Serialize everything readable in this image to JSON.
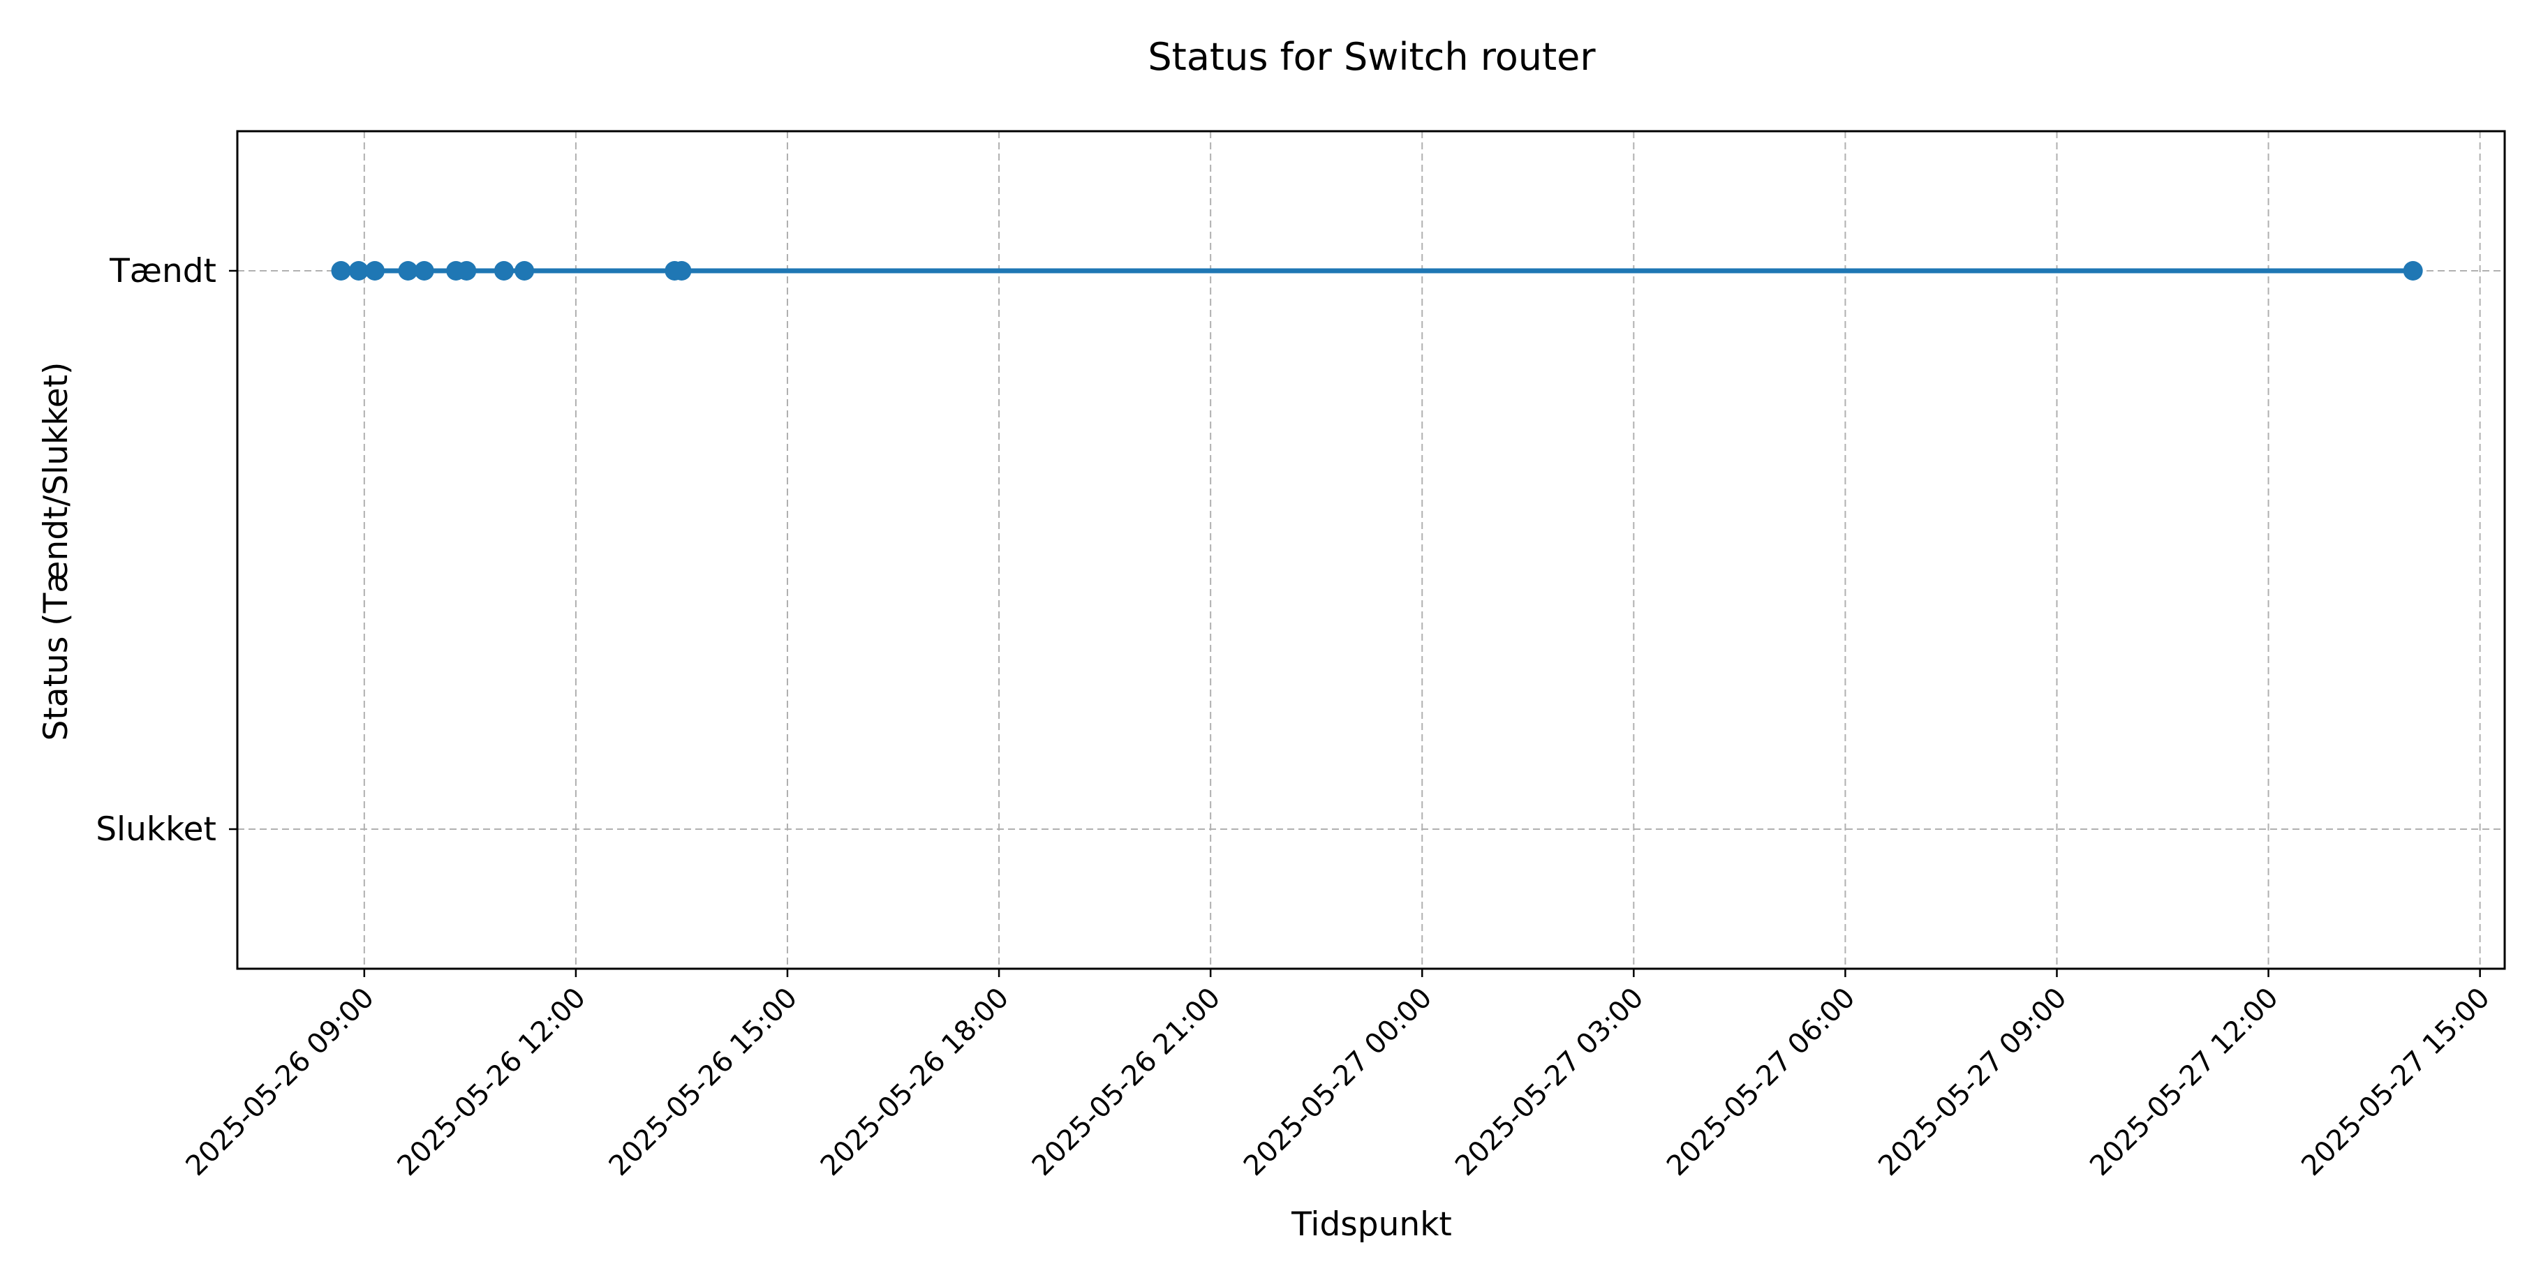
{
  "chart_data": {
    "type": "line",
    "title": "Status for Switch router",
    "xlabel": "Tidspunkt",
    "ylabel": "Status (Tændt/Slukket)",
    "grid": true,
    "grid_style": "dashed",
    "legend": "none",
    "line_color": "#1f77b4",
    "grid_color": "#b0b0b0",
    "axis_color": "#000000",
    "x_ticks": [
      "2025-05-26 09:00",
      "2025-05-26 12:00",
      "2025-05-26 15:00",
      "2025-05-26 18:00",
      "2025-05-26 21:00",
      "2025-05-27 00:00",
      "2025-05-27 03:00",
      "2025-05-27 06:00",
      "2025-05-27 09:00",
      "2025-05-27 12:00",
      "2025-05-27 15:00"
    ],
    "x_tick_values_hours": [
      9,
      12,
      15,
      18,
      21,
      24,
      27,
      30,
      33,
      36,
      39
    ],
    "x_unit": "hours since 2025-05-26 00:00",
    "xlim": [
      7.2,
      39.35
    ],
    "y_ticks": [
      {
        "value": 0,
        "label": "Slukket"
      },
      {
        "value": 1,
        "label": "Tændt"
      }
    ],
    "ylim": [
      -0.25,
      1.25
    ],
    "series": [
      {
        "name": "Switch router",
        "x": [
          8.67,
          8.92,
          9.15,
          9.62,
          9.85,
          10.3,
          10.45,
          10.98,
          11.27,
          13.4,
          13.5,
          38.05
        ],
        "y": [
          1,
          1,
          1,
          1,
          1,
          1,
          1,
          1,
          1,
          1,
          1,
          1
        ]
      }
    ]
  }
}
